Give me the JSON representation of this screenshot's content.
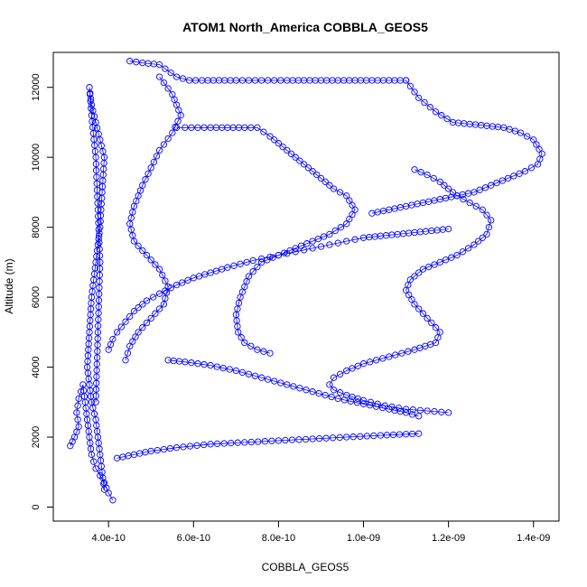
{
  "chart_data": {
    "type": "scatter",
    "title": "ATOM1 North_America COBBLA_GEOS5",
    "xlabel": "COBBLA_GEOS5",
    "ylabel": "Altitude (m)",
    "xlim": [
      2.7e-10,
      1.46e-09
    ],
    "ylim": [
      -400,
      13000
    ],
    "x_ticks": [
      4e-10,
      6e-10,
      8e-10,
      1e-09,
      1.2e-09,
      1.4e-09
    ],
    "x_tick_labels": [
      "4.0e-10",
      "6.0e-10",
      "8.0e-10",
      "1.0e-09",
      "1.2e-09",
      "1.4e-09"
    ],
    "y_ticks": [
      0,
      2000,
      4000,
      6000,
      8000,
      10000,
      12000
    ],
    "y_tick_labels": [
      "0",
      "2000",
      "4000",
      "6000",
      "8000",
      "10000",
      "12000"
    ],
    "grid": false,
    "legend": "none",
    "marker": "open-circle",
    "color": "#0000ff",
    "series": [
      {
        "x": [
          3.9e-10,
          3.85e-10,
          3.8e-10,
          3.75e-10,
          3.7e-10,
          3.6e-10,
          3.55e-10,
          3.5e-10,
          3.55e-10,
          3.6e-10,
          3.7e-10,
          3.8e-10,
          3.85e-10,
          3.9e-10,
          3.8e-10,
          3.7e-10,
          3.6e-10,
          3.55e-10,
          3.6e-10,
          3.7e-10,
          3.75e-10,
          3.8e-10,
          3.75e-10,
          3.7e-10
        ],
        "y": [
          500,
          1000,
          1500,
          2000,
          2500,
          3000,
          3500,
          4000,
          5000,
          6000,
          7000,
          8000,
          9000,
          10000,
          10500,
          11000,
          11500,
          12000,
          11200,
          10000,
          8500,
          7000,
          5000,
          3000
        ]
      },
      {
        "x": [
          4e-10,
          4.1e-10,
          4.2e-10,
          4.4e-10,
          4.6e-10,
          4.9e-10,
          5.2e-10,
          5.6e-10,
          6e-10,
          6.4e-10,
          6.8e-10,
          7.1e-10,
          7.4e-10,
          7.6e-10,
          7.8e-10,
          8e-10,
          8.2e-10,
          8.4e-10,
          8.6e-10,
          8.8e-10,
          9e-10,
          9.2e-10,
          9.4e-10,
          9.6e-10,
          9.8e-10,
          1e-09,
          1.04e-09,
          1.08e-09,
          1.12e-09,
          1.16e-09,
          1.2e-09
        ],
        "y": [
          4500,
          4800,
          5000,
          5300,
          5600,
          5900,
          6100,
          6350,
          6550,
          6700,
          6850,
          6950,
          7050,
          7100,
          7150,
          7200,
          7250,
          7300,
          7350,
          7400,
          7450,
          7500,
          7550,
          7600,
          7650,
          7700,
          7750,
          7800,
          7850,
          7900,
          7950
        ]
      },
      {
        "x": [
          1.12e-09,
          1.15e-09,
          1.18e-09,
          1.2e-09,
          1.22e-09,
          1.25e-09,
          1.28e-09,
          1.3e-09,
          1.29e-09,
          1.26e-09,
          1.22e-09,
          1.18e-09,
          1.14e-09,
          1.11e-09,
          1.1e-09,
          1.12e-09,
          1.15e-09,
          1.18e-09,
          1.17e-09,
          1.12e-09,
          1.06e-09,
          1e-09,
          9.6e-10,
          9.3e-10,
          9.2e-10,
          9.3e-10,
          9.6e-10,
          1e-09,
          1.05e-09,
          1.1e-09,
          1.15e-09,
          1.2e-09
        ],
        "y": [
          9650,
          9500,
          9300,
          9100,
          8900,
          8700,
          8500,
          8200,
          7800,
          7500,
          7200,
          7000,
          6800,
          6500,
          6200,
          5800,
          5400,
          5000,
          4700,
          4500,
          4300,
          4100,
          3900,
          3700,
          3500,
          3350,
          3200,
          3050,
          2900,
          2800,
          2750,
          2700
        ]
      },
      {
        "x": [
          4.5e-10,
          4.8e-10,
          5.2e-10,
          5.6e-10,
          5.9e-10,
          6.2e-10,
          6.6e-10,
          7e-10,
          7.3e-10,
          7.6e-10,
          7.9e-10,
          8.2e-10,
          8.6e-10,
          9e-10,
          9.4e-10,
          9.8e-10,
          1.02e-09,
          1.06e-09,
          1.1e-09
        ],
        "y": [
          12750,
          12700,
          12650,
          12300,
          12200,
          12200,
          12200,
          12200,
          12200,
          12200,
          12200,
          12200,
          12200,
          12200,
          12200,
          12200,
          12200,
          12200,
          12200
        ]
      },
      {
        "x": [
          1.1e-09,
          1.13e-09,
          1.17e-09,
          1.21e-09,
          1.25e-09,
          1.29e-09,
          1.33e-09,
          1.37e-09,
          1.4e-09,
          1.42e-09,
          1.41e-09,
          1.38e-09,
          1.34e-09,
          1.3e-09,
          1.26e-09,
          1.22e-09,
          1.18e-09,
          1.14e-09,
          1.1e-09,
          1.06e-09,
          1.02e-09
        ],
        "y": [
          12200,
          11700,
          11300,
          11000,
          10950,
          10900,
          10850,
          10700,
          10500,
          10100,
          9800,
          9600,
          9400,
          9200,
          9000,
          8900,
          8800,
          8700,
          8600,
          8500,
          8400
        ]
      },
      {
        "x": [
          5.6e-10,
          5.8e-10,
          6.1e-10,
          6.4e-10,
          6.8e-10,
          7.2e-10,
          7.5e-10,
          7.8e-10,
          8.1e-10,
          8.4e-10,
          8.7e-10,
          9e-10,
          9.3e-10,
          9.6e-10,
          9.8e-10,
          9.6e-10,
          9.2e-10,
          8.8e-10,
          8.4e-10,
          8e-10,
          7.6e-10,
          7.3e-10,
          7.1e-10,
          7e-10,
          7.05e-10,
          7.2e-10,
          7.5e-10,
          7.8e-10
        ],
        "y": [
          10850,
          10850,
          10850,
          10850,
          10850,
          10850,
          10850,
          10600,
          10300,
          10000,
          9700,
          9400,
          9100,
          8900,
          8500,
          8100,
          7800,
          7600,
          7400,
          7200,
          7000,
          6600,
          6000,
          5500,
          5000,
          4700,
          4500,
          4400
        ]
      },
      {
        "x": [
          5.2e-10,
          5.5e-10,
          5.7e-10,
          5.5e-10,
          5.2e-10,
          5e-10,
          4.8e-10,
          4.6e-10,
          4.5e-10,
          4.6e-10,
          4.9e-10,
          5.2e-10,
          5.4e-10,
          5.3e-10,
          5e-10,
          4.7e-10,
          4.5e-10,
          4.4e-10
        ],
        "y": [
          12300,
          11800,
          11200,
          10700,
          10200,
          9700,
          9200,
          8600,
          8100,
          7600,
          7200,
          6800,
          6300,
          5800,
          5400,
          5000,
          4600,
          4200
        ]
      },
      {
        "x": [
          4.2e-10,
          4.6e-10,
          5e-10,
          5.6e-10,
          6.4e-10,
          7.2e-10,
          8e-10,
          8.8e-10,
          9.6e-10,
          1.04e-09,
          1.13e-09
        ],
        "y": [
          1400,
          1500,
          1600,
          1700,
          1800,
          1850,
          1900,
          1950,
          2000,
          2050,
          2100
        ]
      },
      {
        "x": [
          1.13e-09,
          1.1e-09,
          1.06e-09,
          1e-09,
          9.4e-10,
          8.8e-10,
          8.2e-10,
          7.6e-10,
          7e-10,
          6.4e-10,
          5.8e-10,
          5.4e-10
        ],
        "y": [
          2600,
          2700,
          2800,
          2950,
          3100,
          3300,
          3500,
          3700,
          3900,
          4050,
          4150,
          4200
        ]
      },
      {
        "x": [
          3.1e-10,
          3.2e-10,
          3.3e-10,
          3.25e-10,
          3.3e-10,
          3.4e-10,
          3.5e-10,
          3.6e-10,
          3.7e-10,
          3.8e-10,
          3.9e-10,
          4e-10,
          4.1e-10
        ],
        "y": [
          1750,
          2000,
          2300,
          2700,
          3100,
          3500,
          2500,
          1500,
          1100,
          900,
          700,
          400,
          200
        ]
      }
    ]
  }
}
